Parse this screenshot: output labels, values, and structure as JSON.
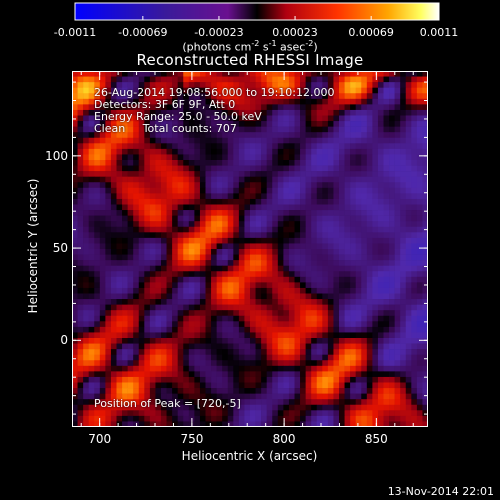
{
  "chart_data": {
    "type": "heatmap",
    "title": "Reconstructed RHESSI Image",
    "xlabel": "Heliocentric X (arcsec)",
    "ylabel": "Heliocentric Y (arcsec)",
    "xlim": [
      685,
      878
    ],
    "ylim": [
      -47,
      146
    ],
    "x_ticks": [
      700,
      750,
      800,
      850
    ],
    "y_ticks": [
      0,
      50,
      100
    ],
    "colorbar": {
      "ticks": [
        "-0.0011",
        "-0.00069",
        "-0.00023",
        "0.00023",
        "0.00069",
        "0.0011"
      ],
      "tick_values": [
        -0.0011,
        -0.00069,
        -0.00023,
        0.00023,
        0.00069,
        0.0011
      ],
      "range": [
        -0.0011,
        0.0011
      ],
      "units_text": "(photons cm",
      "units_exp1": "-2",
      "units_mid": " s",
      "units_exp2": "-1",
      "units_mid2": " asec",
      "units_exp3": "-2",
      "units_end": ")"
    },
    "peak_position": [
      720,
      -5
    ],
    "annotations": [
      "26-Aug-2014 19:08:56.000 to 19:10:12.000",
      "Detectors: 3F 6F 9F, Att 0",
      "Energy Range: 25.0 - 50.0 keV",
      "Clean     Total counts: 707",
      "Position of Peak = [720,-5]"
    ]
  },
  "footer_timestamp": "13-Nov-2014 22:01"
}
